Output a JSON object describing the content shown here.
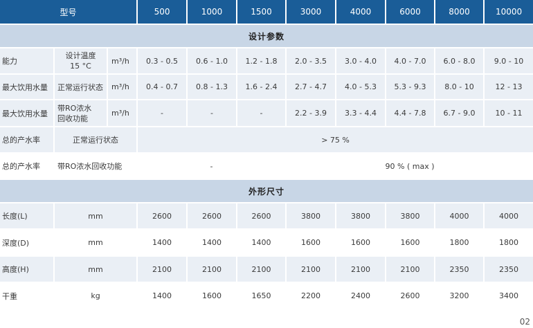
{
  "header": {
    "model_label": "型号",
    "models": [
      "500",
      "1000",
      "1500",
      "3000",
      "4000",
      "6000",
      "8000",
      "10000"
    ]
  },
  "sections": {
    "design": "设计参数",
    "dimensions": "外形尺寸"
  },
  "design_rows": {
    "capacity": {
      "label": "能力",
      "sub": "设计温度",
      "sub2": "15 °C",
      "unit": "m³/h",
      "values": [
        "0.3 - 0.5",
        "0.6 - 1.0",
        "1.2  - 1.8",
        "2.0  - 3.5",
        "3.0 - 4.0",
        "4.0  - 7.0",
        "6.0 - 8.0",
        "9.0 - 10"
      ]
    },
    "max_normal": {
      "label": "最大饮用水量",
      "sub": "正常运行状态",
      "unit": "m³/h",
      "values": [
        "0.4  - 0.7",
        "0.8 - 1.3",
        "1.6  - 2.4",
        "2.7  - 4.7",
        "4.0 - 5.3",
        "5.3  - 9.3",
        "8.0 - 10",
        "12 - 13"
      ]
    },
    "max_ro": {
      "label": "最大饮用水量",
      "sub": "带RO浓水",
      "sub2": "回收功能",
      "unit": "m³/h",
      "values": [
        "-",
        "-",
        "-",
        "2.2  - 3.9",
        "3.3 - 4.4",
        "4.4  - 7.8",
        "6.7  - 9.0",
        "10 - 11"
      ]
    },
    "yield_normal": {
      "label": "总的产水率",
      "sub": "正常运行状态",
      "value": "> 75 %"
    },
    "yield_ro": {
      "label": "总的产水率",
      "sub": "带RO浓水回收功能",
      "value_small": "-",
      "value_large": "90 % ( max )"
    }
  },
  "dimension_rows": {
    "length": {
      "label": "长度(L)",
      "unit": "mm",
      "values": [
        "2600",
        "2600",
        "2600",
        "3800",
        "3800",
        "3800",
        "4000",
        "4000"
      ]
    },
    "depth": {
      "label": "深度(D)",
      "unit": "mm",
      "values": [
        "1400",
        "1400",
        "1400",
        "1600",
        "1600",
        "1600",
        "1800",
        "1800"
      ]
    },
    "height": {
      "label": "高度(H)",
      "unit": "mm",
      "values": [
        "2100",
        "2100",
        "2100",
        "2100",
        "2100",
        "2100",
        "2350",
        "2350"
      ]
    },
    "weight": {
      "label": "干重",
      "unit": "kg",
      "values": [
        "1400",
        "1600",
        "1650",
        "2200",
        "2400",
        "2600",
        "3200",
        "3400"
      ]
    }
  },
  "page_number": "02"
}
